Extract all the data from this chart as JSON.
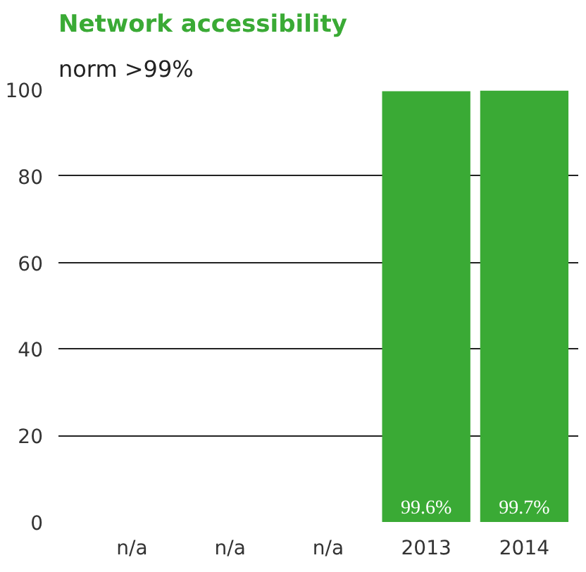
{
  "chart_data": {
    "type": "bar",
    "title": "Network accessibility",
    "subtitle": "norm >99%",
    "categories": [
      "n/a",
      "n/a",
      "n/a",
      "2013",
      "2014"
    ],
    "values": [
      null,
      null,
      null,
      99.6,
      99.7
    ],
    "value_labels": [
      null,
      null,
      null,
      "99.6%",
      "99.7%"
    ],
    "color": "#3aaa35",
    "ylim": [
      0,
      100
    ],
    "yticks": [
      0,
      20,
      40,
      60,
      80,
      100
    ],
    "grid": "y"
  }
}
